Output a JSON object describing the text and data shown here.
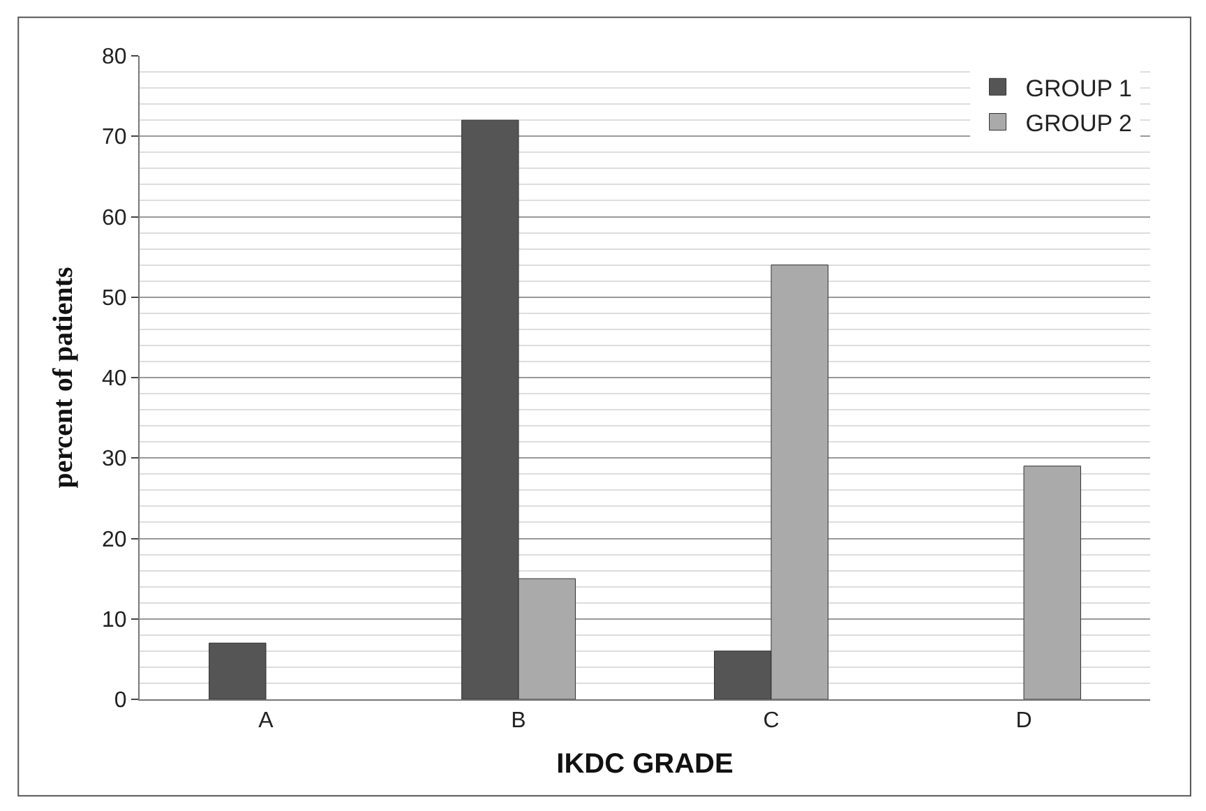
{
  "chart_data": {
    "type": "bar",
    "xlabel": "IKDC GRADE",
    "ylabel": "percent of patients",
    "categories": [
      "A",
      "B",
      "C",
      "D"
    ],
    "series": [
      {
        "name": "GROUP 1",
        "color": "#555555",
        "values": [
          7,
          72,
          6,
          null
        ]
      },
      {
        "name": "GROUP 2",
        "color": "#aaaaaa",
        "values": [
          null,
          15,
          54,
          29
        ]
      }
    ],
    "ylim": [
      0,
      80
    ],
    "yticks": [
      0,
      10,
      20,
      30,
      40,
      50,
      60,
      70,
      80
    ],
    "grid": "y",
    "legend": "top right"
  }
}
